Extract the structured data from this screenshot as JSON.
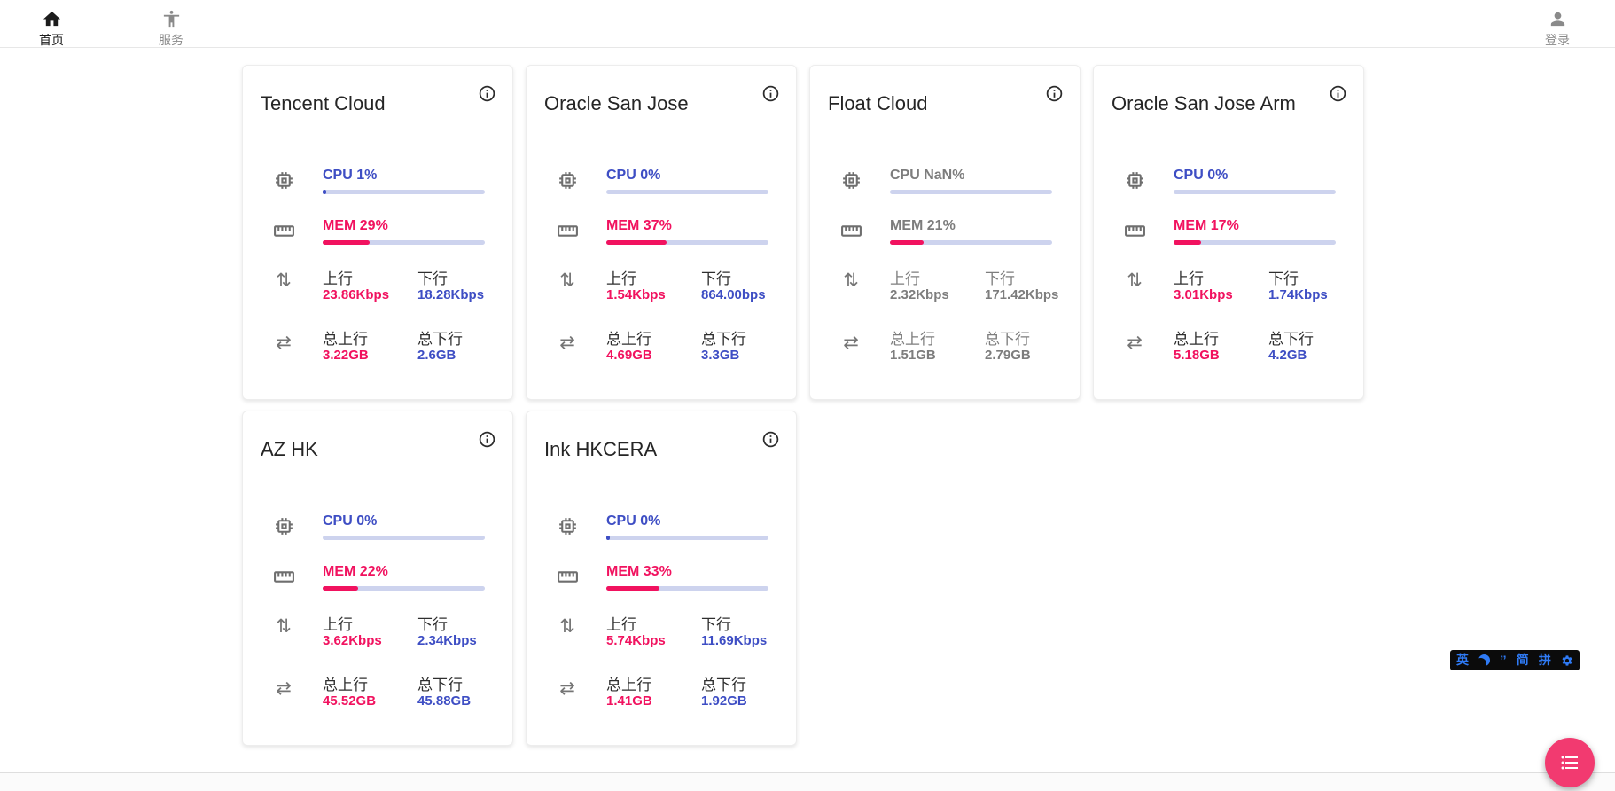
{
  "navbar": {
    "home": {
      "label": "首页"
    },
    "services": {
      "label": "服务"
    },
    "login": {
      "label": "登录"
    }
  },
  "card_labels": {
    "up": "上行",
    "down": "下行",
    "total_up": "总上行",
    "total_down": "总下行"
  },
  "servers": [
    {
      "name": "Tencent Cloud",
      "cpu_label": "CPU 1%",
      "cpu_percent": 1,
      "cpu_dot": true,
      "mem_label": "MEM 29%",
      "mem_percent": 29,
      "up_value": "23.86Kbps",
      "down_value": "18.28Kbps",
      "total_up_value": "3.22GB",
      "total_down_value": "2.6GB",
      "offline": false
    },
    {
      "name": "Oracle San Jose",
      "cpu_label": "CPU 0%",
      "cpu_percent": 0,
      "cpu_dot": false,
      "mem_label": "MEM 37%",
      "mem_percent": 37,
      "up_value": "1.54Kbps",
      "down_value": "864.00bps",
      "total_up_value": "4.69GB",
      "total_down_value": "3.3GB",
      "offline": false
    },
    {
      "name": "Float Cloud",
      "cpu_label": "CPU NaN%",
      "cpu_percent": null,
      "cpu_dot": false,
      "mem_label": "MEM 21%",
      "mem_percent": 21,
      "up_value": "2.32Kbps",
      "down_value": "171.42Kbps",
      "total_up_value": "1.51GB",
      "total_down_value": "2.79GB",
      "offline": true
    },
    {
      "name": "Oracle San Jose Arm",
      "cpu_label": "CPU 0%",
      "cpu_percent": 0,
      "cpu_dot": false,
      "mem_label": "MEM 17%",
      "mem_percent": 17,
      "up_value": "3.01Kbps",
      "down_value": "1.74Kbps",
      "total_up_value": "5.18GB",
      "total_down_value": "4.2GB",
      "offline": false
    },
    {
      "name": "AZ HK",
      "cpu_label": "CPU 0%",
      "cpu_percent": 0,
      "cpu_dot": false,
      "mem_label": "MEM 22%",
      "mem_percent": 22,
      "up_value": "3.62Kbps",
      "down_value": "2.34Kbps",
      "total_up_value": "45.52GB",
      "total_down_value": "45.88GB",
      "offline": false
    },
    {
      "name": "Ink HKCERA",
      "cpu_label": "CPU 0%",
      "cpu_percent": 0,
      "cpu_dot": true,
      "mem_label": "MEM 33%",
      "mem_percent": 33,
      "up_value": "5.74Kbps",
      "down_value": "11.69Kbps",
      "total_up_value": "1.41GB",
      "total_down_value": "1.92GB",
      "offline": false
    }
  ],
  "ime_bar": {
    "mode": "英",
    "punct": "’’",
    "charset": "简",
    "input": "拼",
    "icons": {
      "moon": "crescent-moon-icon",
      "settings": "gear-icon"
    }
  },
  "icons": {
    "nav_home": "home-icon",
    "nav_service": "accessibility-person-icon",
    "nav_login": "person-icon",
    "card_info": "info-circle-icon",
    "cpu": "chip-icon",
    "mem": "ruler-icon",
    "net": "up-down-arrows-icon",
    "total": "left-right-arrows-icon",
    "fab": "bulleted-list-icon"
  },
  "colors": {
    "blue": "#3E4EC4",
    "pink": "#F1125F",
    "track": "#CDD3EE",
    "gray_text": "#7D7D7D",
    "fab_pink": "#F23A70",
    "ime_blue": "#2F7BF6"
  }
}
